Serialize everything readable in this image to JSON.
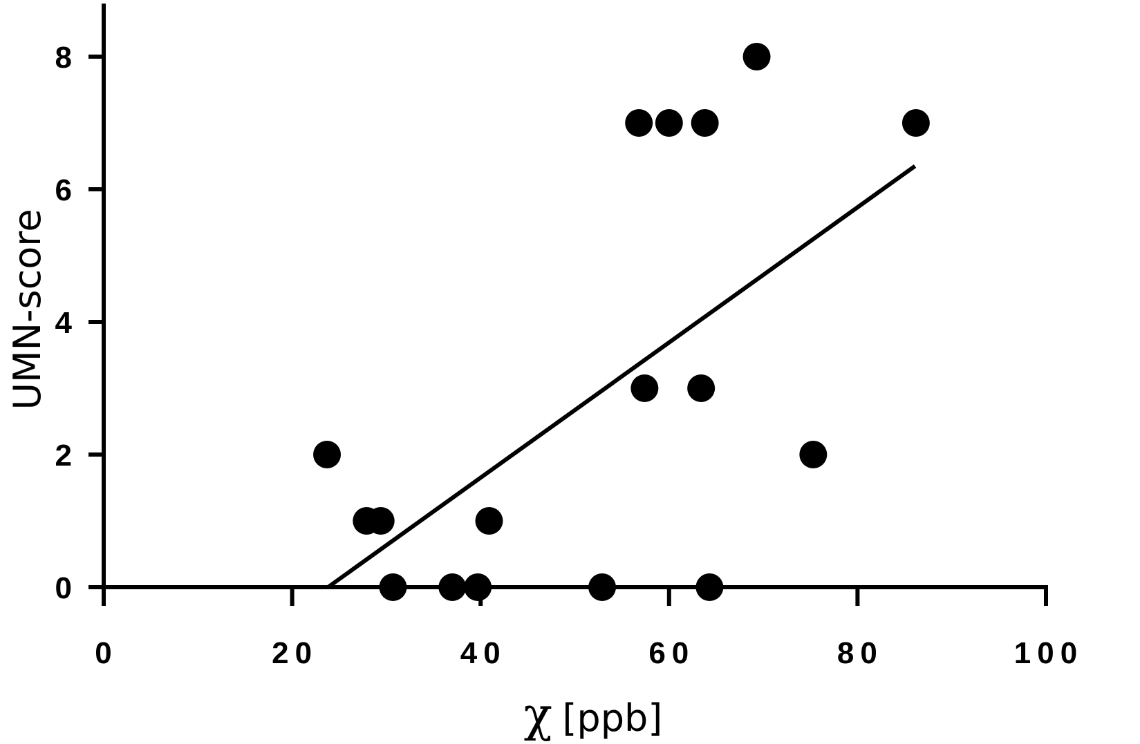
{
  "chart_data": {
    "type": "scatter",
    "title": "",
    "xlabel_symbol": "χ",
    "xlabel_unit": "[ppb]",
    "ylabel": "UMN-score",
    "xlim": [
      0,
      100
    ],
    "ylim": [
      0,
      8.8
    ],
    "x_ticks": [
      0,
      20,
      40,
      60,
      80,
      100
    ],
    "x_tick_labels": [
      "0",
      "20",
      "40",
      "60",
      "80",
      "100"
    ],
    "y_ticks": [
      0,
      2,
      4,
      6,
      8
    ],
    "y_tick_labels": [
      "0",
      "2",
      "4",
      "6",
      "8"
    ],
    "grid": false,
    "legend": "none",
    "marker_color": "#000000",
    "line_color": "#000000",
    "series": [
      {
        "kind": "points",
        "points": [
          {
            "x": 23.7,
            "y": 2
          },
          {
            "x": 27.9,
            "y": 1
          },
          {
            "x": 29.4,
            "y": 1
          },
          {
            "x": 30.7,
            "y": 0
          },
          {
            "x": 37.0,
            "y": 0
          },
          {
            "x": 39.7,
            "y": 0
          },
          {
            "x": 40.9,
            "y": 1
          },
          {
            "x": 52.9,
            "y": 0
          },
          {
            "x": 56.8,
            "y": 7
          },
          {
            "x": 57.4,
            "y": 3
          },
          {
            "x": 60.0,
            "y": 7
          },
          {
            "x": 63.4,
            "y": 3
          },
          {
            "x": 63.8,
            "y": 7
          },
          {
            "x": 64.3,
            "y": 0
          },
          {
            "x": 69.3,
            "y": 8
          },
          {
            "x": 75.3,
            "y": 2
          },
          {
            "x": 86.2,
            "y": 7
          }
        ]
      },
      {
        "kind": "fit-line",
        "points": [
          {
            "x": 23.8,
            "y": 0
          },
          {
            "x": 86.1,
            "y": 6.35
          }
        ]
      }
    ]
  }
}
